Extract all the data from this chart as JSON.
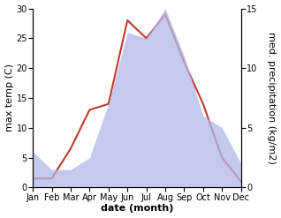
{
  "months": [
    "Jan",
    "Feb",
    "Mar",
    "Apr",
    "May",
    "Jun",
    "Jul",
    "Aug",
    "Sep",
    "Oct",
    "Nov",
    "Dec"
  ],
  "temperature": [
    1.5,
    1.5,
    6.5,
    13.0,
    14.0,
    28.0,
    25.0,
    29.0,
    21.0,
    14.0,
    5.0,
    1.0
  ],
  "precipitation": [
    3.0,
    1.5,
    1.5,
    2.5,
    7.0,
    13.0,
    12.5,
    15.0,
    11.0,
    6.0,
    5.0,
    2.0
  ],
  "temp_color": "#c0392b",
  "precip_fill_color": "#b0b8e8",
  "precip_fill_alpha": 0.75,
  "temp_ylim": [
    0,
    30
  ],
  "precip_ylim": [
    0,
    15
  ],
  "temp_yticks": [
    0,
    5,
    10,
    15,
    20,
    25,
    30
  ],
  "precip_yticks": [
    0,
    5,
    10,
    15
  ],
  "xlabel": "date (month)",
  "ylabel_left": "max temp (C)",
  "ylabel_right": "med. precipitation (kg/m2)",
  "bg_color": "#ffffff",
  "label_fontsize": 8,
  "tick_fontsize": 7
}
